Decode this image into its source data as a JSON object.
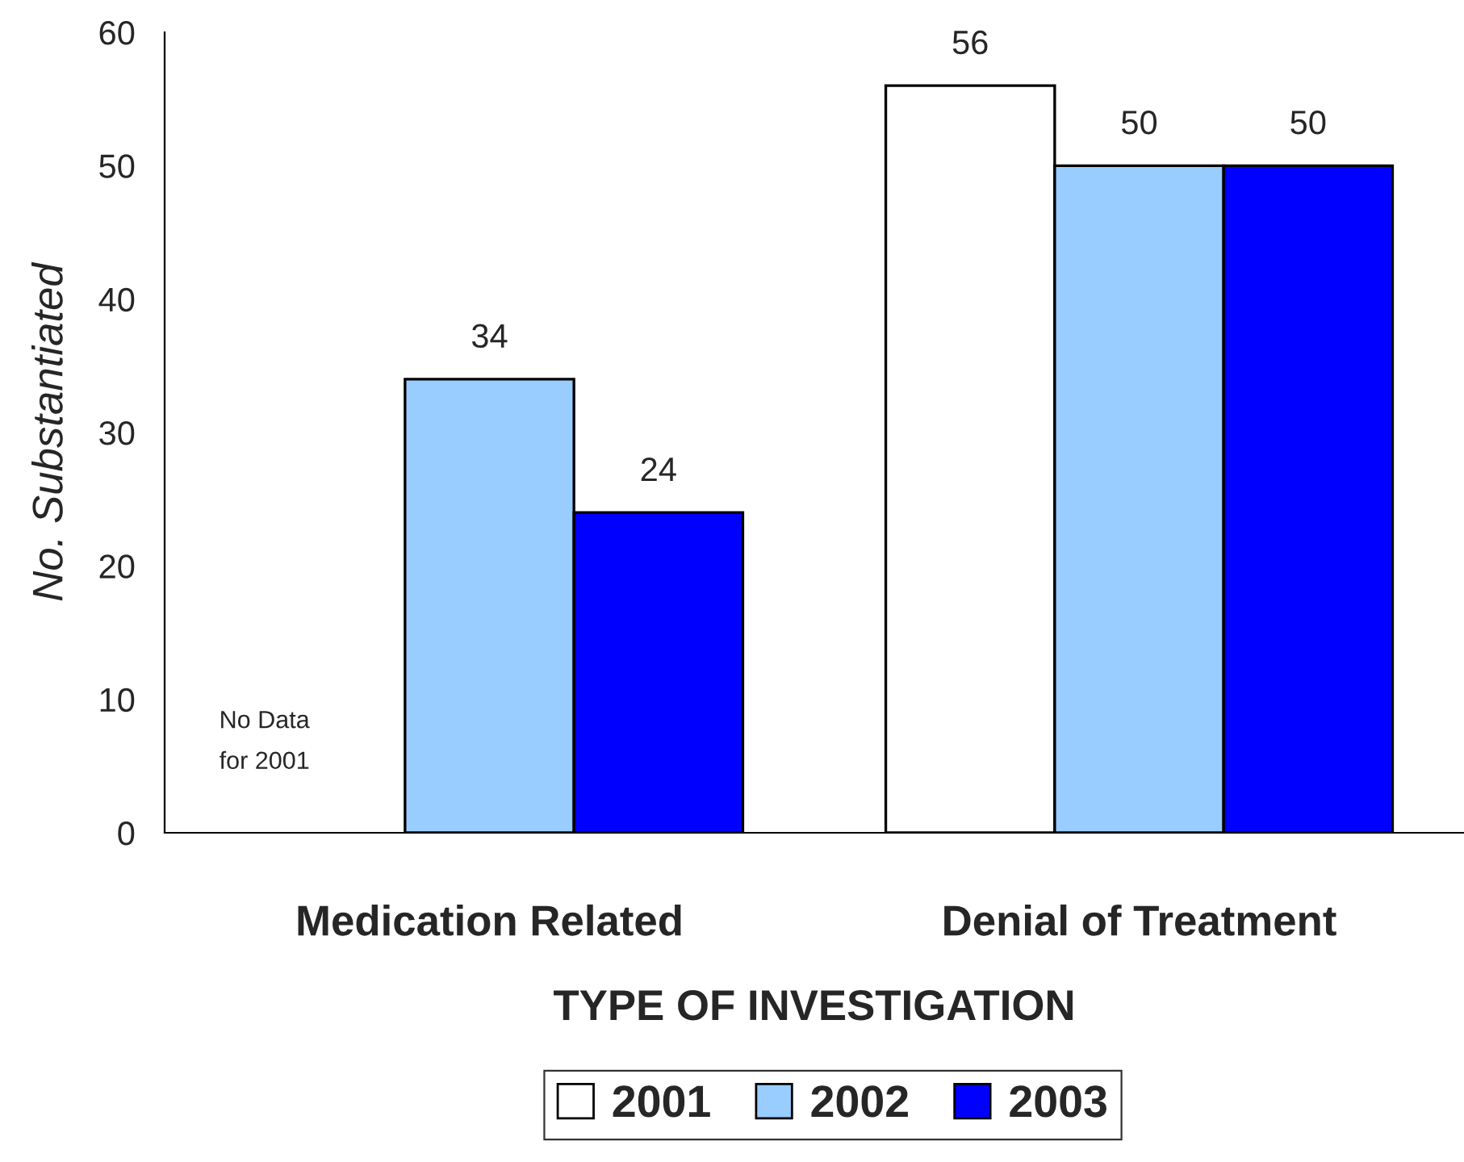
{
  "chart_data": {
    "type": "bar",
    "xlabel": "TYPE OF INVESTIGATION",
    "ylabel": "No. Substantiated",
    "categories": [
      "Medication Related",
      "Denial of Treatment"
    ],
    "series": [
      {
        "name": "2001",
        "color": "#ffffff",
        "values": [
          null,
          56
        ]
      },
      {
        "name": "2002",
        "color": "#99ccff",
        "values": [
          34,
          50
        ]
      },
      {
        "name": "2003",
        "color": "#0000ff",
        "values": [
          24,
          50
        ]
      }
    ],
    "ylim": [
      0,
      60
    ],
    "yticks": [
      0,
      10,
      20,
      30,
      40,
      50,
      60
    ],
    "data_labels": true,
    "legend": "bottom",
    "grid": false,
    "annotations": [
      "No Data\nfor 2001"
    ]
  }
}
